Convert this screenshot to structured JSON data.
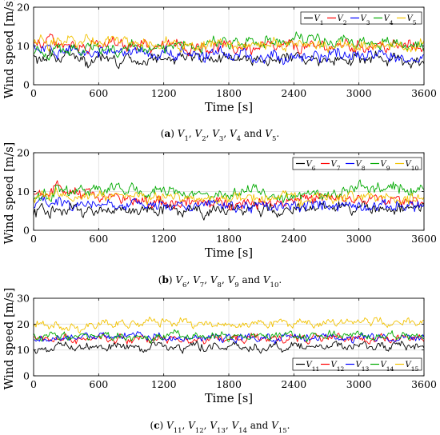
{
  "chart_data": [
    {
      "type": "line",
      "caption_prefix": "(a)",
      "caption_text": "V1, V2, V3, V4 and V5.",
      "xlabel": "Time [s]",
      "ylabel": "Wind speed [m/s]",
      "xlim": [
        0,
        3600
      ],
      "ylim": [
        0,
        20
      ],
      "xticks": [
        0,
        600,
        1200,
        1800,
        2400,
        3000,
        3600
      ],
      "yticks": [
        0,
        10,
        20
      ],
      "grid": true,
      "legend_placement": "top-right",
      "series": [
        {
          "name": "V1",
          "color": "#000000",
          "values": [
            6.9,
            6.5,
            7.7,
            6.1,
            7.4,
            7.3,
            6.5,
            5.8,
            7.2,
            6.7,
            7.5,
            6.2,
            6.8,
            6.1,
            7.3,
            6.4,
            7.6,
            6.9,
            6.2,
            7.1,
            6.5,
            7.4,
            6.1,
            7.3,
            6.8,
            7.0,
            6.4,
            6.9,
            6.2,
            7.3,
            6.1,
            7.5,
            6.7,
            6.6,
            7.2,
            6.3,
            7.0,
            6.8,
            6.1,
            7.6,
            6.4,
            7.2,
            6.7,
            6.3,
            7.4,
            6.9,
            6.2,
            7.1,
            5.6,
            6.3,
            5.8
          ]
        },
        {
          "name": "V2",
          "color": "#ff0000",
          "values": [
            11.2,
            9.5,
            12.8,
            10.5,
            9.6,
            11.4,
            10.2,
            8.8,
            10.7,
            9.4,
            11.3,
            10.1,
            9.7,
            10.6,
            11.2,
            9.3,
            10.4,
            9.5,
            10.8,
            9.9,
            9.3,
            10.7,
            9.8,
            9.2,
            10.5,
            9.7,
            9.0,
            10.4,
            8.9,
            9.6,
            10.2,
            9.1,
            9.8,
            10.3,
            9.4,
            9.9,
            9.2,
            10.6,
            9.5,
            9.8,
            10.9,
            9.3,
            10.2,
            9.7,
            10.8,
            9.4,
            10.1,
            9.6,
            10.3,
            9.5,
            10.1
          ]
        },
        {
          "name": "V3",
          "color": "#0000ff",
          "values": [
            9.6,
            8.7,
            10.3,
            7.8,
            8.9,
            9.5,
            8.2,
            7.6,
            8.4,
            9.1,
            7.9,
            8.6,
            7.5,
            8.3,
            8.8,
            7.4,
            8.1,
            9.0,
            7.7,
            8.5,
            7.6,
            8.2,
            7.3,
            7.9,
            8.4,
            7.2,
            7.8,
            8.6,
            7.1,
            7.5,
            8.1,
            7.6,
            6.9,
            7.4,
            7.9,
            7.2,
            7.7,
            7.0,
            7.5,
            8.2,
            7.3,
            7.8,
            6.8,
            7.4,
            7.1,
            7.7,
            6.9,
            7.3,
            6.6,
            7.1,
            6.7
          ]
        },
        {
          "name": "V4",
          "color": "#00aa00",
          "values": [
            8.4,
            9.3,
            7.8,
            10.2,
            8.9,
            9.6,
            8.5,
            10.4,
            9.1,
            8.7,
            9.8,
            8.4,
            9.5,
            10.1,
            8.8,
            9.4,
            10.6,
            9.2,
            10.0,
            9.7,
            10.8,
            9.4,
            10.3,
            11.1,
            10.5,
            9.9,
            11.4,
            10.6,
            11.8,
            10.7,
            12.1,
            11.2,
            10.6,
            11.5,
            12.4,
            11.3,
            12.8,
            11.6,
            10.9,
            12.2,
            11.4,
            10.8,
            11.7,
            10.5,
            11.3,
            10.2,
            11.0,
            10.6,
            9.9,
            10.7,
            10.1
          ]
        },
        {
          "name": "V5",
          "color": "#f2c200",
          "values": [
            10.6,
            11.5,
            10.4,
            11.9,
            10.9,
            12.2,
            11.3,
            12.4,
            11.1,
            10.6,
            11.8,
            10.9,
            11.4,
            10.3,
            11.2,
            10.7,
            10.1,
            11.0,
            10.5,
            9.8,
            10.6,
            10.2,
            9.7,
            10.4,
            10.9,
            10.0,
            10.6,
            10.3,
            9.9,
            10.7,
            10.2,
            10.5,
            9.8,
            10.4,
            10.9,
            10.1,
            10.6,
            10.3,
            9.9,
            10.5,
            10.8,
            10.2,
            10.7,
            10.1,
            10.5,
            10.0,
            10.8,
            10.3,
            9.9,
            10.4,
            10.2
          ]
        }
      ]
    },
    {
      "type": "line",
      "caption_prefix": "(b)",
      "caption_text": "V6, V7, V8, V9 and V10.",
      "xlabel": "Time [s]",
      "ylabel": "Wind speed [m/s]",
      "xlim": [
        0,
        3600
      ],
      "ylim": [
        0,
        20
      ],
      "xticks": [
        0,
        600,
        1200,
        1800,
        2400,
        3000,
        3600
      ],
      "yticks": [
        0,
        10,
        20
      ],
      "grid": true,
      "legend_placement": "top-right",
      "series": [
        {
          "name": "V6",
          "color": "#000000",
          "values": [
            4.9,
            5.3,
            4.6,
            5.2,
            4.8,
            5.4,
            4.7,
            5.1,
            4.5,
            5.3,
            4.9,
            5.6,
            4.8,
            5.2,
            4.6,
            5.0,
            4.4,
            5.3,
            4.7,
            4.5,
            5.1,
            4.6,
            4.3,
            5.0,
            4.7,
            4.9,
            5.2,
            4.8,
            5.1,
            4.9,
            5.3,
            5.0,
            5.4,
            5.2,
            6.1,
            6.5,
            5.9,
            6.4,
            6.0,
            6.3,
            5.8,
            6.2,
            5.7,
            6.1,
            5.6,
            6.0,
            5.5,
            5.9,
            5.4,
            5.8,
            5.6
          ]
        },
        {
          "name": "V7",
          "color": "#ff0000",
          "values": [
            8.7,
            10.4,
            9.2,
            11.3,
            9.8,
            10.6,
            9.1,
            10.2,
            8.9,
            7.6,
            8.8,
            7.4,
            8.2,
            7.1,
            7.8,
            6.9,
            7.5,
            7.2,
            6.8,
            7.4,
            7.1,
            6.7,
            7.3,
            7.0,
            6.9,
            7.4,
            7.1,
            6.8,
            7.5,
            7.2,
            7.0,
            7.6,
            7.3,
            8.1,
            8.7,
            8.2,
            7.9,
            8.5,
            8.1,
            7.7,
            8.3,
            7.9,
            7.6,
            8.2,
            7.8,
            7.4,
            8.0,
            7.7,
            7.3,
            7.9,
            7.6
          ]
        },
        {
          "name": "V8",
          "color": "#0000ff",
          "values": [
            6.6,
            7.1,
            6.4,
            7.3,
            6.8,
            6.2,
            7.0,
            6.5,
            6.9,
            6.3,
            7.2,
            6.6,
            6.1,
            6.8,
            6.4,
            6.9,
            6.2,
            6.7,
            6.0,
            6.6,
            6.3,
            5.9,
            6.5,
            6.1,
            5.8,
            6.4,
            6.0,
            6.3,
            5.9,
            6.2,
            5.8,
            6.1,
            5.7,
            6.4,
            6.0,
            6.3,
            6.8,
            6.4,
            6.9,
            6.3,
            6.7,
            6.2,
            6.6,
            6.1,
            6.5,
            6.0,
            6.4,
            6.1,
            6.7,
            6.3,
            6.5
          ]
        },
        {
          "name": "V9",
          "color": "#00aa00",
          "values": [
            8.4,
            9.6,
            8.7,
            10.5,
            9.3,
            10.8,
            9.7,
            10.2,
            11.1,
            9.8,
            10.6,
            11.3,
            10.1,
            10.8,
            9.6,
            10.4,
            9.8,
            9.2,
            10.1,
            9.6,
            8.9,
            9.8,
            9.3,
            8.7,
            9.5,
            9.1,
            10.4,
            9.7,
            11.2,
            9.5,
            8.8,
            9.4,
            8.9,
            9.6,
            9.1,
            9.7,
            8.9,
            9.5,
            9.0,
            9.8,
            10.6,
            10.1,
            11.3,
            10.5,
            11.0,
            10.3,
            11.5,
            10.6,
            10.1,
            10.8,
            10.3
          ]
        },
        {
          "name": "V10",
          "color": "#f2c200",
          "values": [
            8.9,
            9.4,
            8.6,
            9.7,
            9.1,
            8.5,
            9.3,
            8.8,
            9.5,
            8.4,
            9.1,
            8.7,
            8.3,
            9.0,
            8.6,
            8.2,
            8.8,
            8.4,
            8.1,
            8.6,
            8.3,
            7.9,
            8.5,
            8.2,
            8.7,
            8.3,
            7.9,
            8.6,
            8.2,
            8.4,
            8.1,
            8.5,
            8.8,
            8.4,
            8.1,
            8.7,
            8.3,
            8.9,
            8.5,
            8.2,
            8.8,
            8.4,
            8.0,
            8.6,
            8.3,
            7.9,
            8.5,
            8.1,
            7.8,
            8.4,
            8.1
          ]
        }
      ]
    },
    {
      "type": "line",
      "caption_prefix": "(c)",
      "caption_text": "V11, V12, V13, V14 and V15.",
      "xlabel": "Time [s]",
      "ylabel": "Wind speed [m/s]",
      "xlim": [
        0,
        3600
      ],
      "ylim": [
        0,
        30
      ],
      "xticks": [
        0,
        600,
        1200,
        1800,
        2400,
        3000,
        3600
      ],
      "yticks": [
        0,
        10,
        20,
        30
      ],
      "grid": true,
      "legend_placement": "bottom-right",
      "series": [
        {
          "name": "V11",
          "color": "#000000",
          "values": [
            10.2,
            11.1,
            9.6,
            10.8,
            11.9,
            10.4,
            11.6,
            10.9,
            12.1,
            10.7,
            11.5,
            12.3,
            11.0,
            11.8,
            10.6,
            11.4,
            12.2,
            10.9,
            11.7,
            10.5,
            11.3,
            12.0,
            10.8,
            11.6,
            10.4,
            11.2,
            12.1,
            10.7,
            11.5,
            10.3,
            11.1,
            11.9,
            10.6,
            11.4,
            12.2,
            10.9,
            11.7,
            10.5,
            11.3,
            12.0,
            10.8,
            11.6,
            12.4,
            11.1,
            11.9,
            10.7,
            11.5,
            12.3,
            11.0,
            11.8,
            11.2
          ]
        },
        {
          "name": "V12",
          "color": "#ff0000",
          "values": [
            14.6,
            13.2,
            15.1,
            13.8,
            14.9,
            13.4,
            15.3,
            14.1,
            13.6,
            15.0,
            13.9,
            14.7,
            13.3,
            15.2,
            14.0,
            13.5,
            14.8,
            13.7,
            15.1,
            14.2,
            13.6,
            14.9,
            13.8,
            15.2,
            14.1,
            13.5,
            14.7,
            13.9,
            15.0,
            14.3,
            13.7,
            14.8,
            14.0,
            15.3,
            14.4,
            13.8,
            15.1,
            14.2,
            13.6,
            14.9,
            14.1,
            15.4,
            14.5,
            13.9,
            15.2,
            14.3,
            13.7,
            15.0,
            14.2,
            14.6,
            14.3
          ]
        },
        {
          "name": "V13",
          "color": "#0000ff",
          "values": [
            13.5,
            14.8,
            13.1,
            15.2,
            14.0,
            15.6,
            14.3,
            15.9,
            14.7,
            16.2,
            15.0,
            15.8,
            14.6,
            16.1,
            15.2,
            14.8,
            15.7,
            14.4,
            15.3,
            14.1,
            14.9,
            13.8,
            14.6,
            15.4,
            14.2,
            15.0,
            13.9,
            14.7,
            15.5,
            14.3,
            15.1,
            14.0,
            14.8,
            15.6,
            14.4,
            15.2,
            14.1,
            14.9,
            15.7,
            14.5,
            15.3,
            14.2,
            15.0,
            15.8,
            14.6,
            15.4,
            14.3,
            15.1,
            14.7,
            15.3,
            14.8
          ]
        },
        {
          "name": "V14",
          "color": "#00aa00",
          "values": [
            15.6,
            14.3,
            16.1,
            14.9,
            15.7,
            14.5,
            16.3,
            15.1,
            14.7,
            15.9,
            14.6,
            16.2,
            15.0,
            14.8,
            15.6,
            14.4,
            15.9,
            15.1,
            16.4,
            15.3,
            14.9,
            15.8,
            14.6,
            16.0,
            15.2,
            14.8,
            15.7,
            15.0,
            16.3,
            15.4,
            14.9,
            15.8,
            15.1,
            16.2,
            15.3,
            14.8,
            15.9,
            15.2,
            16.5,
            15.6,
            15.0,
            16.1,
            15.3,
            14.9,
            15.8,
            15.2,
            16.4,
            15.5,
            15.1,
            15.9,
            15.4
          ]
        },
        {
          "name": "V15",
          "color": "#f2c200",
          "values": [
            19.8,
            20.6,
            18.4,
            19.5,
            18.1,
            19.2,
            17.9,
            20.3,
            18.7,
            21.5,
            19.6,
            20.8,
            19.1,
            21.2,
            20.4,
            22.6,
            20.1,
            21.4,
            19.8,
            20.9,
            20.2,
            19.4,
            20.7,
            19.1,
            20.3,
            19.6,
            18.9,
            20.1,
            19.4,
            20.6,
            19.2,
            19.9,
            20.5,
            19.3,
            20.8,
            19.7,
            20.2,
            19.5,
            20.9,
            19.8,
            20.4,
            21.1,
            19.9,
            20.6,
            21.3,
            20.2,
            21.0,
            20.5,
            21.6,
            20.9,
            21.4
          ]
        }
      ]
    }
  ]
}
